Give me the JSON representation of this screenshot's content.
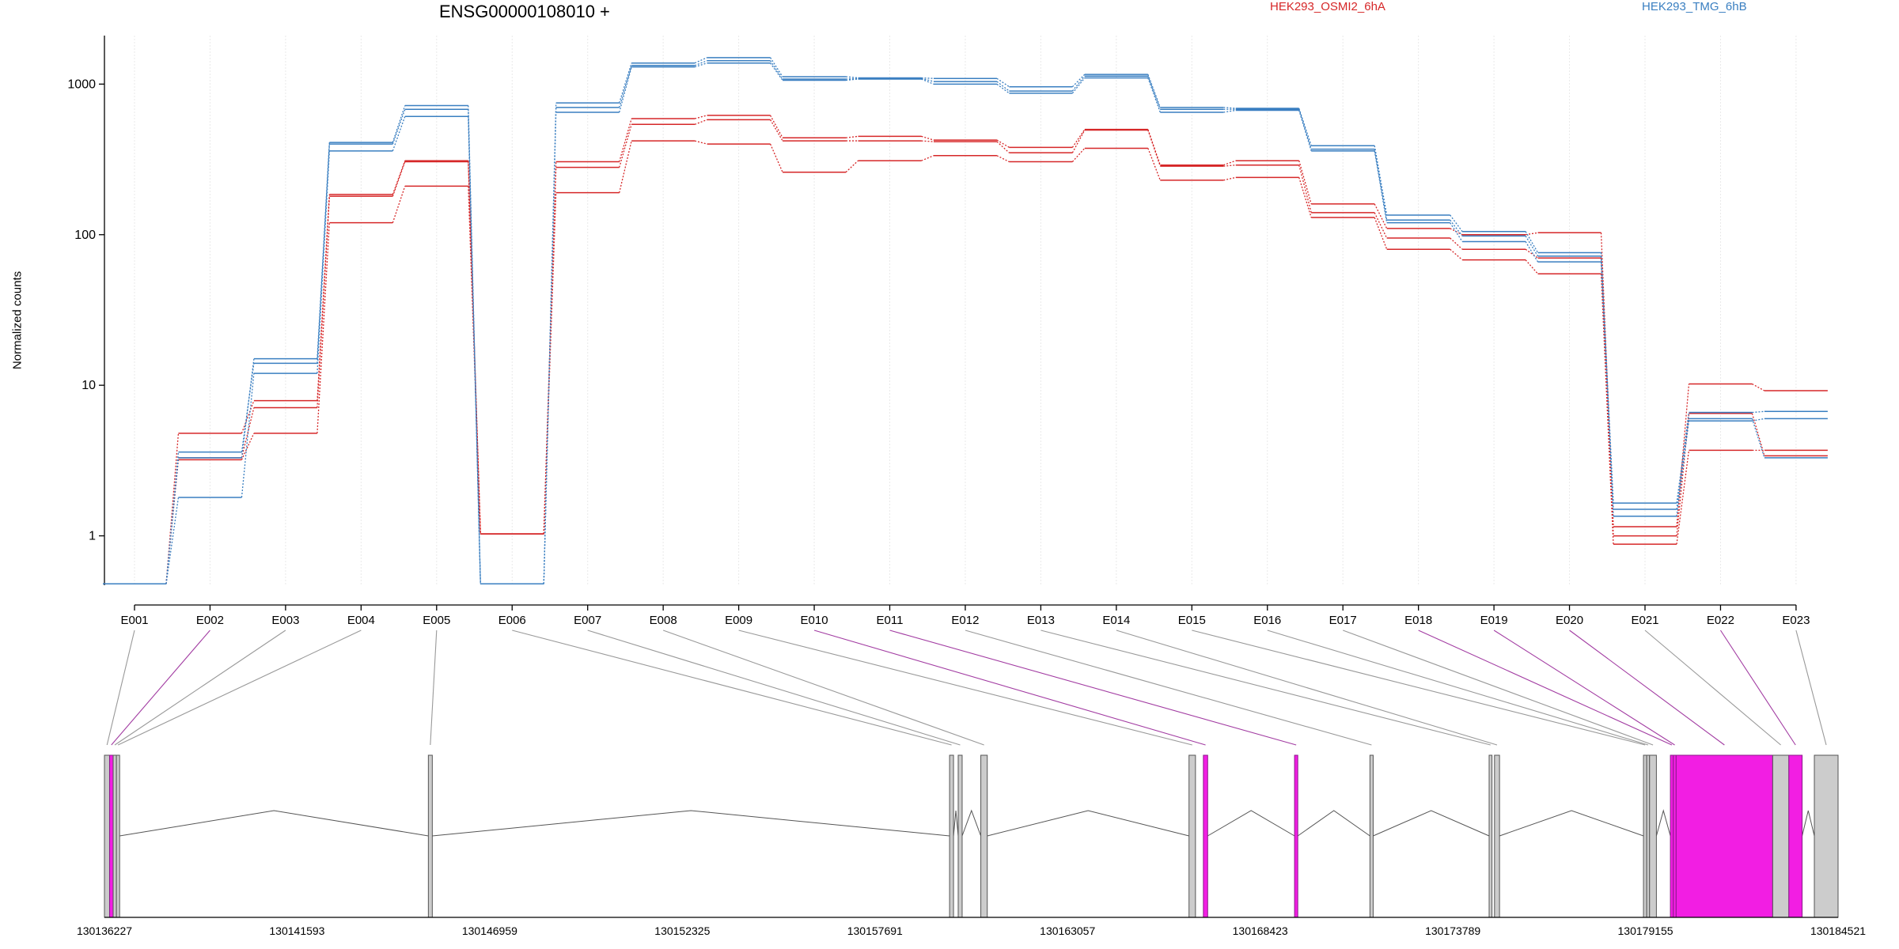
{
  "chart_data": {
    "type": "line",
    "title": "ENSG00000108010 +",
    "ylabel": "Normalized counts",
    "xlabel": "",
    "yscale": "log",
    "ylim": [
      0.47,
      2100
    ],
    "yticks": [
      {
        "value": 1,
        "label": "1"
      },
      {
        "value": 10,
        "label": "10"
      },
      {
        "value": 100,
        "label": "100"
      },
      {
        "value": 1000,
        "label": "1000"
      }
    ],
    "grid": true,
    "categories": [
      "E001",
      "E002",
      "E003",
      "E004",
      "E005",
      "E006",
      "E007",
      "E008",
      "E009",
      "E010",
      "E011",
      "E012",
      "E013",
      "E014",
      "E015",
      "E016",
      "E017",
      "E018",
      "E019",
      "E020",
      "E021",
      "E022",
      "E023"
    ],
    "legend": [
      {
        "label": "HEK293_OSMI2_6hA",
        "color": "#d62728"
      },
      {
        "label": "HEK293_TMG_6hB",
        "color": "#3a7fc1"
      }
    ],
    "series": [
      {
        "group": "HEK293_OSMI2_6hA",
        "color": "#d62728",
        "values": [
          0.48,
          4.8,
          7.9,
          185,
          310,
          1.03,
          305,
          590,
          620,
          440,
          450,
          425,
          380,
          500,
          290,
          310,
          160,
          110,
          100,
          103,
          1.15,
          10.2,
          9.2
        ]
      },
      {
        "group": "HEK293_OSMI2_6hA",
        "color": "#d62728",
        "values": [
          0.48,
          3.3,
          7.1,
          180,
          305,
          1.03,
          280,
          540,
          580,
          420,
          420,
          415,
          350,
          495,
          285,
          290,
          140,
          95,
          80,
          70,
          1.0,
          6.5,
          3.4
        ]
      },
      {
        "group": "HEK293_OSMI2_6hA",
        "color": "#d62728",
        "values": [
          0.48,
          3.2,
          4.8,
          120,
          210,
          1.03,
          190,
          420,
          400,
          260,
          310,
          335,
          305,
          375,
          230,
          240,
          130,
          80,
          68,
          55,
          0.88,
          3.7,
          3.7
        ]
      },
      {
        "group": "HEK293_TMG_6hB",
        "color": "#3a7fc1",
        "values": [
          0.48,
          3.3,
          15,
          410,
          720,
          0.48,
          750,
          1380,
          1500,
          1120,
          1100,
          1090,
          960,
          1160,
          700,
          690,
          390,
          135,
          105,
          76,
          1.65,
          6.6,
          6.7
        ]
      },
      {
        "group": "HEK293_TMG_6hB",
        "color": "#3a7fc1",
        "values": [
          0.48,
          3.6,
          14,
          400,
          680,
          0.48,
          700,
          1330,
          1430,
          1080,
          1090,
          1040,
          900,
          1130,
          680,
          680,
          370,
          125,
          98,
          72,
          1.5,
          6.0,
          3.3
        ]
      },
      {
        "group": "HEK293_TMG_6hB",
        "color": "#3a7fc1",
        "values": [
          0.48,
          1.8,
          12,
          360,
          610,
          0.48,
          650,
          1300,
          1380,
          1060,
          1080,
          1000,
          870,
          1100,
          650,
          670,
          360,
          120,
          90,
          66,
          1.35,
          5.8,
          6.0
        ]
      }
    ],
    "gene_model": {
      "axis_ticks": [
        {
          "value": 130136227,
          "label": "130136227"
        },
        {
          "value": 130141593,
          "label": "130141593"
        },
        {
          "value": 130146959,
          "label": "130146959"
        },
        {
          "value": 130152325,
          "label": "130152325"
        },
        {
          "value": 130157691,
          "label": "130157691"
        },
        {
          "value": 130163057,
          "label": "130163057"
        },
        {
          "value": 130168423,
          "label": "130168423"
        },
        {
          "value": 130173789,
          "label": "130173789"
        },
        {
          "value": 130179155,
          "label": "130179155"
        },
        {
          "value": 130184521,
          "label": "130184521"
        }
      ],
      "range": [
        130136227,
        130184521
      ],
      "exons": [
        {
          "id": "E001",
          "start": 130136227,
          "end": 130136370,
          "highlight": false
        },
        {
          "id": "E002",
          "start": 130136370,
          "end": 130136470,
          "highlight": true
        },
        {
          "id": "E003",
          "start": 130136470,
          "end": 130136560,
          "highlight": false
        },
        {
          "id": "E004",
          "start": 130136560,
          "end": 130136650,
          "highlight": false
        },
        {
          "id": "E005",
          "start": 130145250,
          "end": 130145360,
          "highlight": false
        },
        {
          "id": "E006",
          "start": 130159770,
          "end": 130159880,
          "highlight": false
        },
        {
          "id": "E007",
          "start": 130160010,
          "end": 130160120,
          "highlight": false
        },
        {
          "id": "E008",
          "start": 130160640,
          "end": 130160820,
          "highlight": false
        },
        {
          "id": "E009",
          "start": 130166440,
          "end": 130166620,
          "highlight": false
        },
        {
          "id": "E010",
          "start": 130166840,
          "end": 130166960,
          "highlight": true
        },
        {
          "id": "E011",
          "start": 130169380,
          "end": 130169470,
          "highlight": true
        },
        {
          "id": "E012",
          "start": 130171480,
          "end": 130171570,
          "highlight": false
        },
        {
          "id": "E013",
          "start": 130174800,
          "end": 130174880,
          "highlight": false
        },
        {
          "id": "E014",
          "start": 130174950,
          "end": 130175090,
          "highlight": false
        },
        {
          "id": "E015",
          "start": 130179100,
          "end": 130179190,
          "highlight": false
        },
        {
          "id": "E016",
          "start": 130179190,
          "end": 130179270,
          "highlight": false
        },
        {
          "id": "E017",
          "start": 130179270,
          "end": 130179460,
          "highlight": false
        },
        {
          "id": "E018",
          "start": 130179850,
          "end": 130179930,
          "highlight": true
        },
        {
          "id": "E019",
          "start": 130179930,
          "end": 130180010,
          "highlight": true
        },
        {
          "id": "E020",
          "start": 130180010,
          "end": 130182700,
          "highlight": true
        },
        {
          "id": "E021",
          "start": 130182700,
          "end": 130183150,
          "highlight": false
        },
        {
          "id": "E022",
          "start": 130183150,
          "end": 130183520,
          "highlight": true
        },
        {
          "id": "E023",
          "start": 130183860,
          "end": 130184521,
          "highlight": false
        }
      ],
      "introns": [
        [
          130136650,
          130145250
        ],
        [
          130145360,
          130159770
        ],
        [
          130159880,
          130160010
        ],
        [
          130160120,
          130160640
        ],
        [
          130160820,
          130166440
        ],
        [
          130166960,
          130169380
        ],
        [
          130169470,
          130171480
        ],
        [
          130171570,
          130174800
        ],
        [
          130175090,
          130179100
        ],
        [
          130179460,
          130179850
        ],
        [
          130182700,
          130183150
        ],
        [
          130183520,
          130183860
        ]
      ]
    }
  }
}
